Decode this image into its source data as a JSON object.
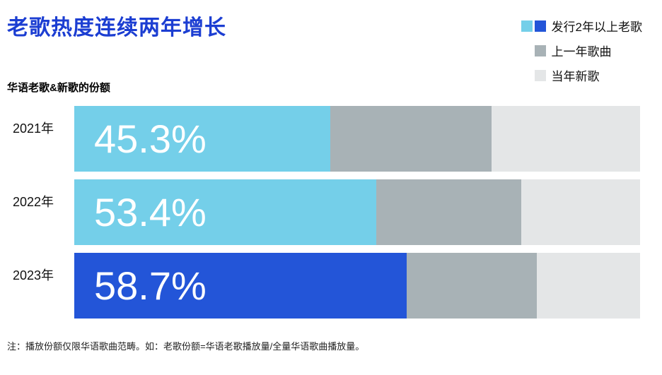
{
  "title": "老歌热度连续两年增长",
  "subtitle": "华语老歌&新歌的份额",
  "footnote": "注：播放份额仅限华语歌曲范畴。如：老歌份额=华语老歌播放量/全量华语歌曲播放量。",
  "colors": {
    "title_blue": "#1c3ed2",
    "old_song_light": "#74cfe9",
    "old_song_dark": "#2355d8",
    "prev_year_gray": "#a8b2b6",
    "new_song_gray": "#e4e6e7"
  },
  "legend": [
    {
      "label": "发行2年以上老歌",
      "swatches": [
        "#74cfe9",
        "#2355d8"
      ]
    },
    {
      "label": "上一年歌曲",
      "swatches": [
        "#a8b2b6"
      ]
    },
    {
      "label": "当年新歌",
      "swatches": [
        "#e4e6e7"
      ]
    }
  ],
  "chart_data": {
    "type": "bar",
    "orientation": "horizontal",
    "stacked": true,
    "title": "老歌热度连续两年增长",
    "subtitle": "华语老歌&新歌的份额",
    "categories": [
      "2021年",
      "2022年",
      "2023年"
    ],
    "series": [
      {
        "name": "发行2年以上老歌",
        "values": [
          45.3,
          53.4,
          58.7
        ],
        "labels": [
          "45.3%",
          "53.4%",
          "58.7%"
        ],
        "colors": [
          "#74cfe9",
          "#74cfe9",
          "#2355d8"
        ]
      },
      {
        "name": "上一年歌曲",
        "values": [
          28.4,
          25.6,
          23.1
        ],
        "color": "#a8b2b6"
      },
      {
        "name": "当年新歌",
        "values": [
          26.3,
          21.0,
          18.2
        ],
        "color": "#e4e6e7"
      }
    ],
    "xlim": [
      0,
      100
    ],
    "legend_position": "top-right",
    "grid": false
  }
}
